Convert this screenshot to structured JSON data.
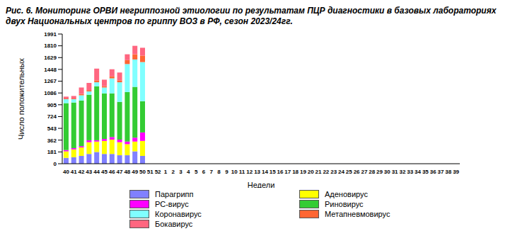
{
  "chart_data": {
    "type": "bar",
    "title": "Рис. 6. Мониторинг ОРВИ негриппозной этиологии по результатам ПЦР диагностики в базовых лабораториях двух Национальных центров по гриппу ВОЗ в РФ, сезон 2023/24гг.",
    "x_label": "Недели",
    "y_label": "Число положительных",
    "stacked": true,
    "legend": "bottom",
    "grid": false,
    "ylim": [
      0,
      1991
    ],
    "yticks": [
      0,
      181,
      362,
      543,
      724,
      905,
      1086,
      1267,
      1448,
      1629,
      1810,
      1991
    ],
    "categories": [
      "40",
      "41",
      "42",
      "43",
      "44",
      "45",
      "46",
      "47",
      "48",
      "49",
      "50",
      "51",
      "52",
      "1",
      "2",
      "3",
      "4",
      "5",
      "6",
      "7",
      "8",
      "9",
      "10",
      "11",
      "12",
      "13",
      "14",
      "15",
      "16",
      "17",
      "18",
      "19",
      "20",
      "21",
      "22",
      "23",
      "24",
      "25",
      "26",
      "27",
      "28",
      "29",
      "30",
      "31",
      "32",
      "33",
      "34",
      "35",
      "36",
      "37",
      "38",
      "39"
    ],
    "series": [
      {
        "name": "Парагрипп",
        "color": "#8080ff",
        "values": [
          90,
          100,
          120,
          150,
          180,
          150,
          150,
          130,
          130,
          190,
          120,
          null,
          null,
          null,
          null,
          null,
          null,
          null,
          null,
          null,
          null,
          null,
          null,
          null,
          null,
          null,
          null,
          null,
          null,
          null,
          null,
          null,
          null,
          null,
          null,
          null,
          null,
          null,
          null,
          null,
          null,
          null,
          null,
          null,
          null,
          null,
          null,
          null,
          null,
          null,
          null,
          null
        ]
      },
      {
        "name": "Аденовирус",
        "color": "#ffff00",
        "values": [
          100,
          120,
          130,
          180,
          160,
          200,
          220,
          200,
          170,
          150,
          230,
          null,
          null,
          null,
          null,
          null,
          null,
          null,
          null,
          null,
          null,
          null,
          null,
          null,
          null,
          null,
          null,
          null,
          null,
          null,
          null,
          null,
          null,
          null,
          null,
          null,
          null,
          null,
          null,
          null,
          null,
          null,
          null,
          null,
          null,
          null,
          null,
          null,
          null,
          null,
          null,
          null
        ]
      },
      {
        "name": "РС-вирус",
        "color": "#ff00ff",
        "values": [
          20,
          20,
          20,
          30,
          20,
          30,
          40,
          40,
          40,
          60,
          130,
          null,
          null,
          null,
          null,
          null,
          null,
          null,
          null,
          null,
          null,
          null,
          null,
          null,
          null,
          null,
          null,
          null,
          null,
          null,
          null,
          null,
          null,
          null,
          null,
          null,
          null,
          null,
          null,
          null,
          null,
          null,
          null,
          null,
          null,
          null,
          null,
          null,
          null,
          null,
          null,
          null
        ]
      },
      {
        "name": "Риновирус",
        "color": "#33cc33",
        "values": [
          720,
          700,
          700,
          700,
          830,
          700,
          670,
          580,
          760,
          780,
          480,
          null,
          null,
          null,
          null,
          null,
          null,
          null,
          null,
          null,
          null,
          null,
          null,
          null,
          null,
          null,
          null,
          null,
          null,
          null,
          null,
          null,
          null,
          null,
          null,
          null,
          null,
          null,
          null,
          null,
          null,
          null,
          null,
          null,
          null,
          null,
          null,
          null,
          null,
          null,
          null,
          null
        ]
      },
      {
        "name": "Коронавирус",
        "color": "#80ffff",
        "values": [
          60,
          50,
          80,
          50,
          60,
          90,
          230,
          300,
          430,
          420,
          600,
          null,
          null,
          null,
          null,
          null,
          null,
          null,
          null,
          null,
          null,
          null,
          null,
          null,
          null,
          null,
          null,
          null,
          null,
          null,
          null,
          null,
          null,
          null,
          null,
          null,
          null,
          null,
          null,
          null,
          null,
          null,
          null,
          null,
          null,
          null,
          null,
          null,
          null,
          null,
          null,
          null
        ]
      },
      {
        "name": "Метапневмовирус",
        "color": "#ff6633",
        "values": [
          10,
          10,
          20,
          20,
          30,
          20,
          30,
          30,
          60,
          80,
          100,
          null,
          null,
          null,
          null,
          null,
          null,
          null,
          null,
          null,
          null,
          null,
          null,
          null,
          null,
          null,
          null,
          null,
          null,
          null,
          null,
          null,
          null,
          null,
          null,
          null,
          null,
          null,
          null,
          null,
          null,
          null,
          null,
          null,
          null,
          null,
          null,
          null,
          null,
          null,
          null,
          null
        ]
      },
      {
        "name": "Бокавирус",
        "color": "#ff6680",
        "values": [
          30,
          40,
          100,
          110,
          180,
          100,
          110,
          120,
          90,
          130,
          120,
          null,
          null,
          null,
          null,
          null,
          null,
          null,
          null,
          null,
          null,
          null,
          null,
          null,
          null,
          null,
          null,
          null,
          null,
          null,
          null,
          null,
          null,
          null,
          null,
          null,
          null,
          null,
          null,
          null,
          null,
          null,
          null,
          null,
          null,
          null,
          null,
          null,
          null,
          null,
          null,
          null
        ]
      }
    ]
  }
}
